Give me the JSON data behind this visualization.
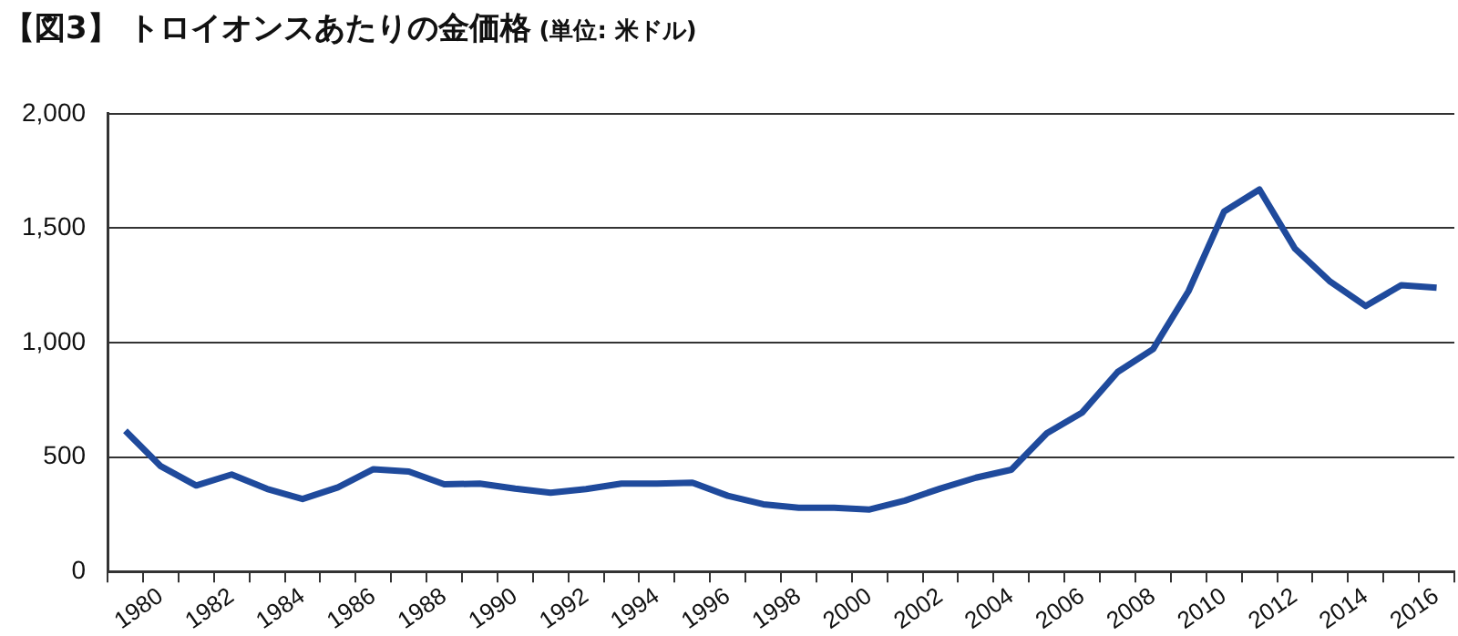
{
  "chart_data": {
    "type": "line",
    "title": "【図3】 トロイオンスあたりの金価格",
    "subtitle": "(単位: 米ドル)",
    "categories": [
      null,
      "1980",
      null,
      "1982",
      null,
      "1984",
      null,
      "1986",
      null,
      "1988",
      null,
      "1990",
      null,
      "1992",
      null,
      "1994",
      null,
      "1996",
      null,
      "1998",
      null,
      "2000",
      null,
      "2002",
      null,
      "2004",
      null,
      "2006",
      null,
      "2008",
      null,
      "2010",
      null,
      "2012",
      null,
      "2014",
      null,
      "2016"
    ],
    "series": [
      {
        "color": "#1f4a9c",
        "values": [
          615,
          460,
          376,
          424,
          361,
          317,
          368,
          447,
          437,
          381,
          384,
          362,
          344,
          360,
          384,
          384,
          388,
          331,
          294,
          279,
          279,
          271,
          310,
          363,
          410,
          445,
          604,
          695,
          872,
          972,
          1225,
          1572,
          1669,
          1411,
          1266,
          1160,
          1251,
          1240
        ]
      }
    ],
    "ylim": [
      0,
      2000
    ],
    "yticks": [
      0,
      {
        "value": 500,
        "label": "500"
      },
      {
        "value": 1000,
        "label": "1,000"
      },
      {
        "value": 1500,
        "label": "1,500"
      },
      {
        "value": 2000,
        "label": "2,000"
      }
    ],
    "grid": "y",
    "legend": false,
    "marker": "none",
    "line_style": "solid"
  }
}
